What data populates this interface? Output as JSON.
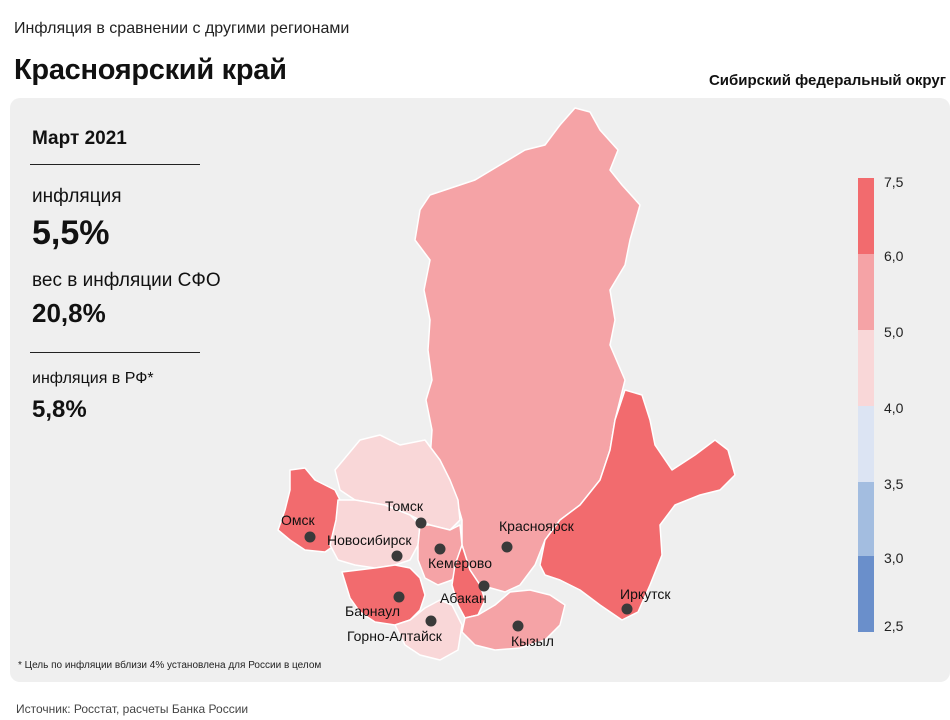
{
  "header": {
    "subtitle": "Инфляция в сравнении с другими регионами",
    "title": "Красноярский край",
    "district": "Сибирский федеральный округ"
  },
  "stats": {
    "period": "Март 2021",
    "inflation_label": "инфляция",
    "inflation_value": "5,5%",
    "weight_label": "вес в инфляции  СФО",
    "weight_value": "20,8%",
    "rf_label": "инфляция  в РФ*",
    "rf_value": "5,8%"
  },
  "map": {
    "cities": [
      "Томск",
      "Омск",
      "Новосибирск",
      "Кемерово",
      "Красноярск",
      "Абакан",
      "Барнаул",
      "Горно-Алтайск",
      "Кызыл",
      "Иркутск"
    ],
    "colors": {
      "very_high": "#f26b6e",
      "high": "#f5a3a6",
      "mid": "#f9d7d8",
      "low": "#dce4f3",
      "lower": "#a3bde0",
      "lowest": "#6a8fcb"
    }
  },
  "legend": {
    "ticks": [
      "7,5",
      "6,0",
      "5,0",
      "4,0",
      "3,5",
      "3,0",
      "2,5"
    ],
    "bands": [
      {
        "from": 6.0,
        "to": 7.5,
        "color": "#f26b6e"
      },
      {
        "from": 5.0,
        "to": 6.0,
        "color": "#f5a3a6"
      },
      {
        "from": 4.0,
        "to": 5.0,
        "color": "#f9d7d8"
      },
      {
        "from": 3.5,
        "to": 4.0,
        "color": "#dce4f3"
      },
      {
        "from": 3.0,
        "to": 3.5,
        "color": "#a3bde0"
      },
      {
        "from": 2.5,
        "to": 3.0,
        "color": "#6a8fcb"
      }
    ]
  },
  "footnote": "* Цель по инфляции вблизи 4% установлена для России в целом",
  "source": "Источник: Росстат, расчеты Банка России"
}
